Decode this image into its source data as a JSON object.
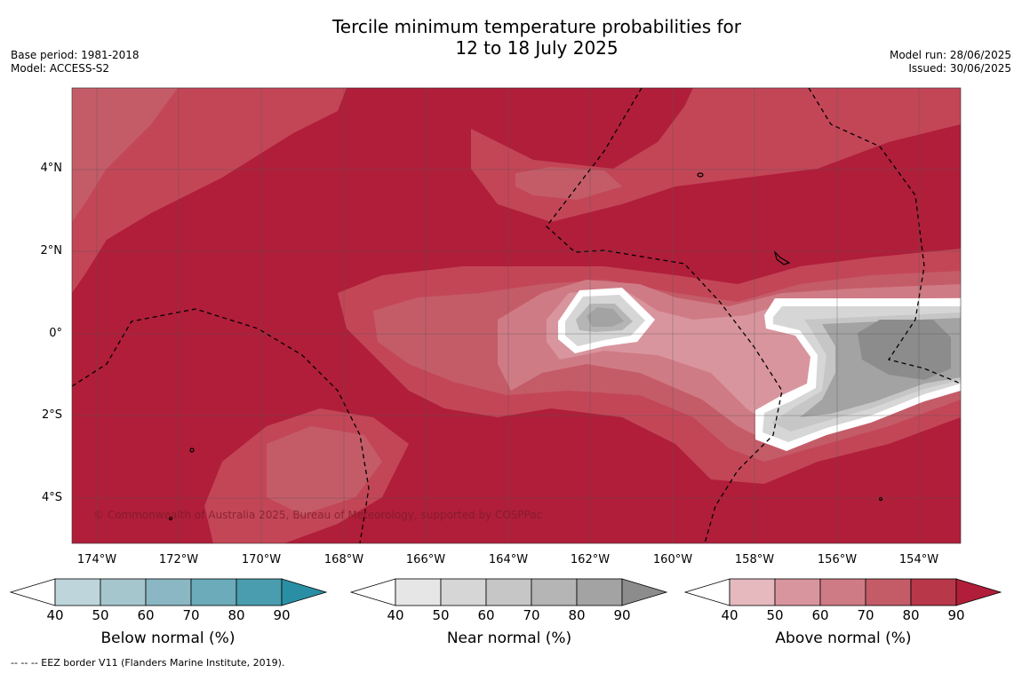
{
  "header": {
    "title_line1": "Tercile minimum temperature probabilities for",
    "title_line2": "12 to 18 July 2025",
    "base_period": "Base period: 1981-2018",
    "model": "Model: ACCESS-S2",
    "model_run": "Model run: 28/06/2025",
    "issued": "Issued: 30/06/2025"
  },
  "map": {
    "lat_labels": [
      "4°N",
      "2°N",
      "0°",
      "2°S",
      "4°S"
    ],
    "lon_labels": [
      "174°W",
      "172°W",
      "170°W",
      "168°W",
      "166°W",
      "164°W",
      "162°W",
      "160°W",
      "158°W",
      "156°W",
      "154°W"
    ],
    "credit": "© Commonwealth of Australia 2025, Bureau of Meteorology, supported by COSPPac",
    "eez_line_color": "#000000"
  },
  "legends": [
    {
      "title": "Below normal (%)",
      "ticks": [
        "40",
        "50",
        "60",
        "70",
        "80",
        "90"
      ],
      "colors": [
        "#bed5dc",
        "#a6c6cd",
        "#8ab7c3",
        "#6cabba",
        "#4a9dae",
        "#2a8fa4"
      ]
    },
    {
      "title": "Near normal (%)",
      "ticks": [
        "40",
        "50",
        "60",
        "70",
        "80",
        "90"
      ],
      "colors": [
        "#e6e6e6",
        "#d6d6d6",
        "#c6c6c6",
        "#b5b5b5",
        "#a3a3a3",
        "#8c8c8c"
      ]
    },
    {
      "title": "Above normal (%)",
      "ticks": [
        "40",
        "50",
        "60",
        "70",
        "80",
        "90"
      ],
      "colors": [
        "#e5b9be",
        "#d9959e",
        "#cf7b85",
        "#c45c68",
        "#b8384a",
        "#b01e3a"
      ]
    }
  ],
  "footer": "--  --  -- EEZ border V11 (Flanders Marine Institute, 2019)."
}
